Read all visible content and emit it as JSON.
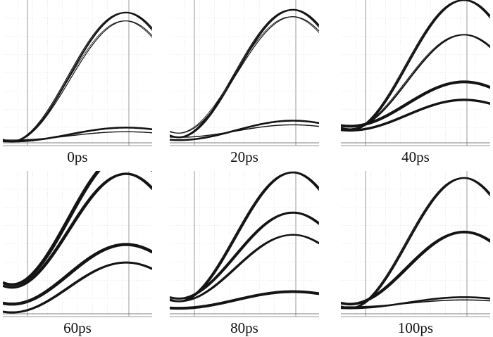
{
  "chart_data": [
    {
      "type": "line",
      "label": "0ps",
      "grid": true,
      "series": [
        {
          "amplitude": 0.93,
          "base": 0.02,
          "weight": 2.2
        },
        {
          "amplitude": 0.87,
          "base": 0.02,
          "weight": 1.2
        },
        {
          "amplitude": 0.1,
          "base": 0.02,
          "weight": 2.6
        },
        {
          "amplitude": 0.06,
          "base": 0.03,
          "weight": 1.4
        }
      ]
    },
    {
      "type": "line",
      "label": "20ps",
      "grid": true,
      "series": [
        {
          "amplitude": 0.92,
          "base": 0.05,
          "weight": 2.4
        },
        {
          "amplitude": 0.84,
          "base": 0.08,
          "weight": 1.2
        },
        {
          "amplitude": 0.14,
          "base": 0.03,
          "weight": 2.6
        },
        {
          "amplitude": 0.09,
          "base": 0.05,
          "weight": 1.4
        }
      ]
    },
    {
      "type": "line",
      "label": "40ps",
      "grid": true,
      "series": [
        {
          "amplitude": 0.94,
          "base": 0.1,
          "weight": 2.6
        },
        {
          "amplitude": 0.68,
          "base": 0.11,
          "weight": 2.0
        },
        {
          "amplitude": 0.32,
          "base": 0.13,
          "weight": 4.0
        },
        {
          "amplitude": 0.22,
          "base": 0.1,
          "weight": 3.4
        }
      ]
    },
    {
      "type": "line",
      "label": "60ps",
      "grid": true,
      "series": [
        {
          "amplitude": 0.95,
          "base": 0.22,
          "weight": 4.2
        },
        {
          "amplitude": 0.82,
          "base": 0.2,
          "weight": 3.4
        },
        {
          "amplitude": 0.43,
          "base": 0.08,
          "weight": 4.4
        },
        {
          "amplitude": 0.36,
          "base": 0.02,
          "weight": 3.0
        }
      ]
    },
    {
      "type": "line",
      "label": "80ps",
      "grid": true,
      "series": [
        {
          "amplitude": 0.93,
          "base": 0.1,
          "weight": 2.8
        },
        {
          "amplitude": 0.62,
          "base": 0.12,
          "weight": 3.0
        },
        {
          "amplitude": 0.48,
          "base": 0.1,
          "weight": 2.4
        },
        {
          "amplitude": 0.12,
          "base": 0.05,
          "weight": 4.0
        }
      ]
    },
    {
      "type": "line",
      "label": "100ps",
      "grid": true,
      "series": [
        {
          "amplitude": 0.94,
          "base": 0.05,
          "weight": 2.6
        },
        {
          "amplitude": 0.52,
          "base": 0.08,
          "weight": 3.8
        },
        {
          "amplitude": 0.08,
          "base": 0.05,
          "weight": 2.6
        },
        {
          "amplitude": 0.05,
          "base": 0.06,
          "weight": 1.6
        }
      ]
    }
  ],
  "colors": {
    "trace": "#141414",
    "grid": "#d7d7d7",
    "axis": "#9a9a9a"
  }
}
